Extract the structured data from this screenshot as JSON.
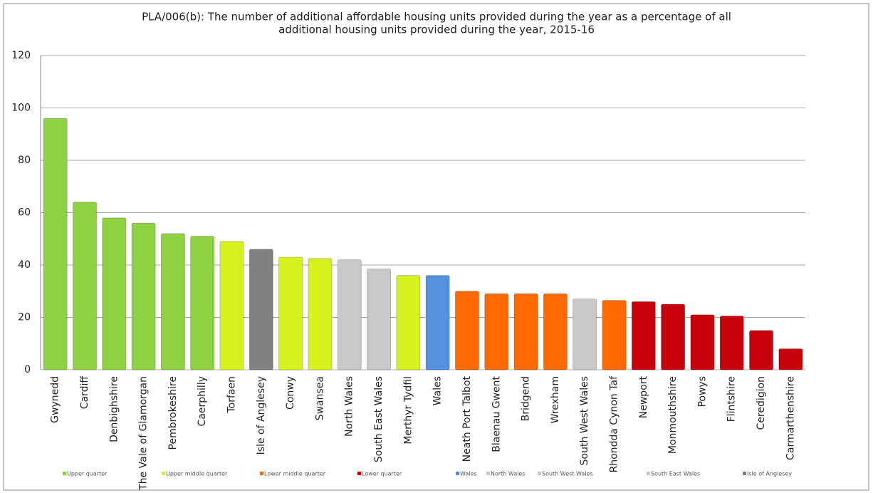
{
  "chart_data": {
    "type": "bar",
    "title": [
      "PLA/006(b): The number of additional affordable housing units provided during the year as a percentage of all",
      "additional housing units provided during the year, 2015-16"
    ],
    "categories": [
      "Gwynedd",
      "Cardiff",
      "Denbighshire",
      "The Vale of Glamorgan",
      "Pembrokeshire",
      "Caerphilly",
      "Torfaen",
      "Isle of Anglesey",
      "Conwy",
      "Swansea",
      "North Wales",
      "South East Wales",
      "Merthyr Tydfil",
      "Wales",
      "Neath Port Talbot",
      "Blaenau Gwent",
      "Bridgend",
      "Wrexham",
      "South West Wales",
      "Rhondda Cynon Taf",
      "Newport",
      "Monmouthshire",
      "Powys",
      "Flintshire",
      "Ceredigion",
      "Carmarthenshire"
    ],
    "values": [
      96,
      64,
      58,
      56,
      52,
      51,
      49,
      46,
      43,
      42.5,
      42,
      38.5,
      36,
      36,
      30,
      29,
      29,
      29,
      27,
      26.5,
      26,
      25,
      21,
      20.5,
      15,
      8
    ],
    "colors": [
      "#8ed243",
      "#8ed243",
      "#8ed243",
      "#8ed243",
      "#8ed243",
      "#8ed243",
      "#d6f21e",
      "#808080",
      "#d6f21e",
      "#d6f21e",
      "#c8c8c8",
      "#c8c8c8",
      "#d6f21e",
      "#5590dc",
      "#ff6a00",
      "#ff6a00",
      "#ff6a00",
      "#ff6a00",
      "#c8c8c8",
      "#ff6a00",
      "#c8000a",
      "#c8000a",
      "#c8000a",
      "#c8000a",
      "#c8000a",
      "#c8000a"
    ],
    "legend": [
      {
        "name": "Upper quarter",
        "color": "#8ed243"
      },
      {
        "name": "Upper middle quarter",
        "color": "#d6f21e"
      },
      {
        "name": "Lower middle quarter",
        "color": "#ff6a00"
      },
      {
        "name": "Lower quarter",
        "color": "#c8000a"
      },
      {
        "name": "Wales",
        "color": "#5590dc"
      },
      {
        "name": "North Wales",
        "color": "#c8c8c8"
      },
      {
        "name": "South West Wales",
        "color": "#c8c8c8"
      },
      {
        "name": "South East Wales",
        "color": "#c8c8c8"
      },
      {
        "name": "Isle of Anglesey",
        "color": "#808080"
      }
    ],
    "ylim": [
      0,
      120
    ],
    "yticks": [
      0,
      20,
      40,
      60,
      80,
      100,
      120
    ],
    "grid": true
  }
}
